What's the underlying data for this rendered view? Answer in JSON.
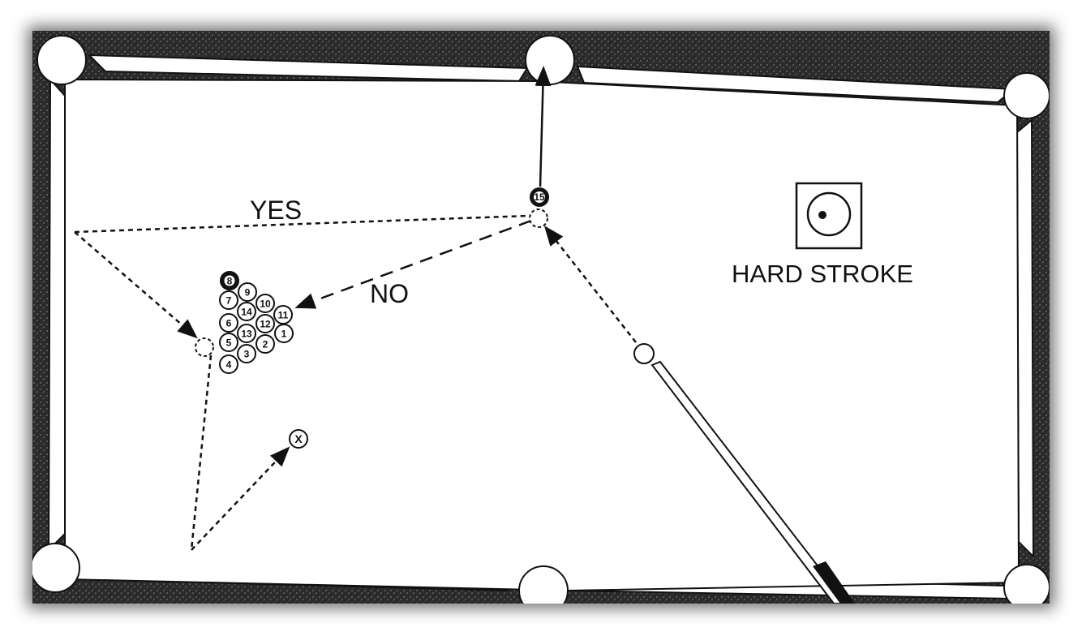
{
  "labels": {
    "yes": "YES",
    "no": "NO",
    "hard_stroke": "HARD STROKE",
    "target_mark": "X"
  },
  "object_ball": "15",
  "rack": [
    "8",
    "9",
    "7",
    "10",
    "14",
    "11",
    "6",
    "12",
    "13",
    "1",
    "5",
    "2",
    "3",
    "4"
  ]
}
